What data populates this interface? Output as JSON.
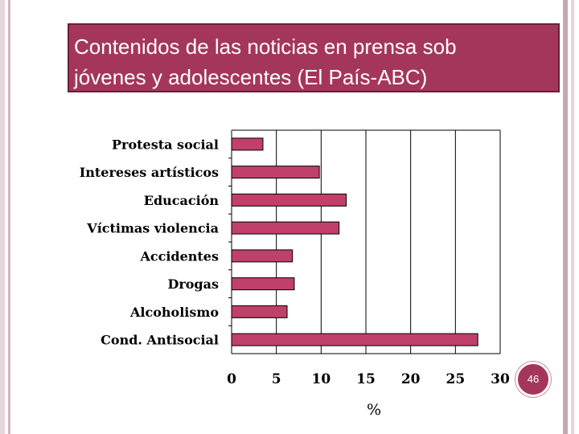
{
  "slide": {
    "title_line1": "Contenidos de las noticias en prensa sob",
    "title_line2": "jóvenes y adolescentes (El País-ABC)",
    "page_number": "46",
    "colors": {
      "title_bg": "#a5365b",
      "bar_fill": "#c0406a",
      "stripe_dark": "#c9a6b2",
      "stripe_light": "#e8d4db"
    }
  },
  "chart_data": {
    "type": "bar",
    "orientation": "horizontal",
    "categories": [
      "Protesta social",
      "Intereses artísticos",
      "Educación",
      "Víctimas violencia",
      "Accidentes",
      "Drogas",
      "Alcoholismo",
      "Cond. Antisocial"
    ],
    "values": [
      3.5,
      9.8,
      12.8,
      12.0,
      6.8,
      7.0,
      6.2,
      27.5
    ],
    "xlabel": "%",
    "xlim": [
      0,
      30
    ],
    "xticks": [
      "0",
      "5",
      "10",
      "15",
      "20",
      "25",
      "30"
    ],
    "grid": "vertical"
  }
}
